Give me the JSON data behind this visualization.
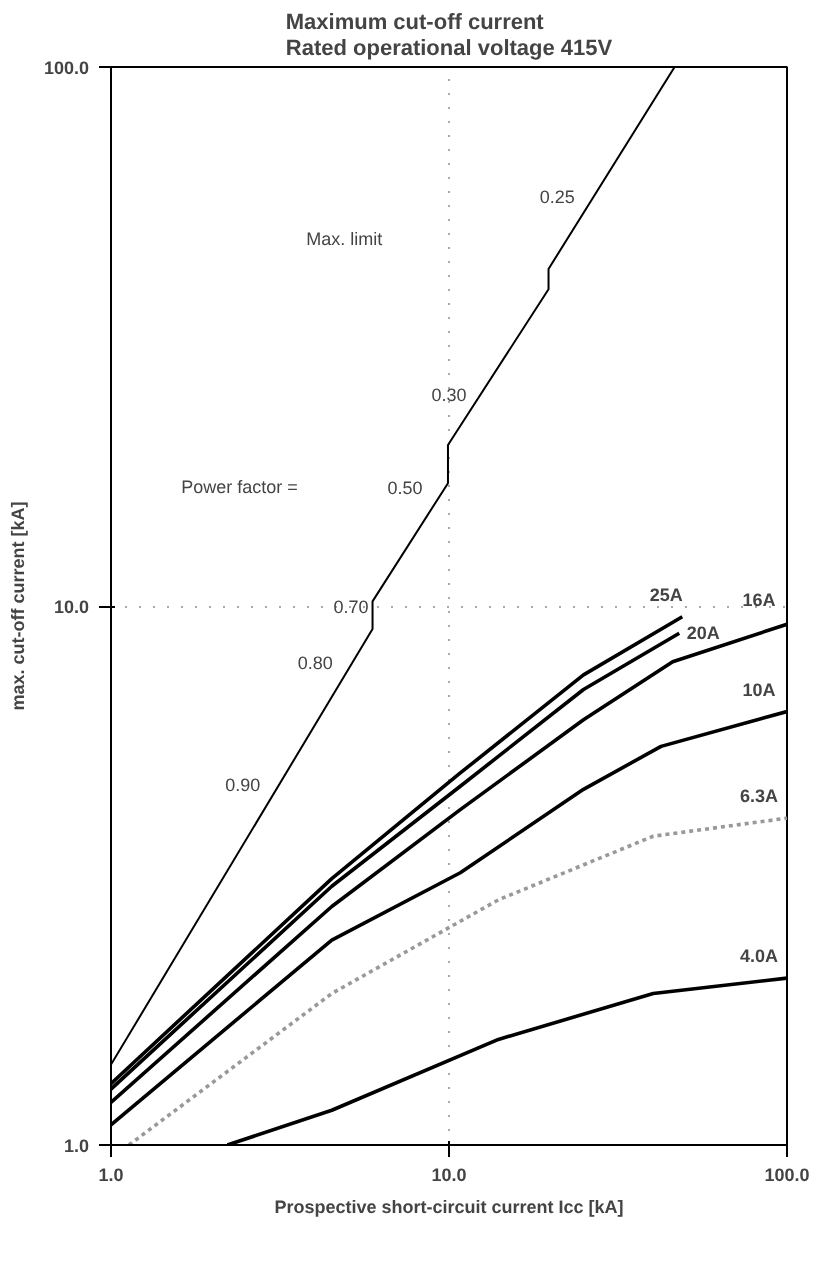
{
  "chart_data": {
    "type": "line",
    "title": "Maximum cut-off current\nRated operational voltage 415V",
    "xlabel": "Prospective short-circuit current Icc [kA]",
    "ylabel": "max. cut-off current [kA]",
    "log": "xy",
    "xlim": [
      1,
      100
    ],
    "ylim": [
      1,
      100
    ],
    "xticks": [
      {
        "value": 1,
        "label": "1.0"
      },
      {
        "value": 10,
        "label": "10.0"
      },
      {
        "value": 100,
        "label": "100.0"
      }
    ],
    "yticks": [
      {
        "value": 1,
        "label": "1.0"
      },
      {
        "value": 10,
        "label": "10.0"
      },
      {
        "value": 100,
        "label": "100.0"
      }
    ],
    "grid": true,
    "line_style": "solid",
    "series": [
      {
        "color": "#000000",
        "x": [
          1,
          5.94,
          5.94,
          9.93,
          9.93,
          19.7,
          19.7,
          46.5
        ],
        "values": [
          1.41,
          9.06,
          10.2,
          16.9,
          19.9,
          38.7,
          42.2,
          100
        ]
      },
      {
        "name": "25A",
        "color": "#000000",
        "x": [
          1,
          4.5,
          10.8,
          25,
          49
        ],
        "values": [
          1.3,
          3.12,
          4.9,
          7.45,
          9.55
        ]
      },
      {
        "name": "20A",
        "color": "#000000",
        "x": [
          1,
          4.5,
          10.8,
          25,
          48
        ],
        "values": [
          1.27,
          3.02,
          4.63,
          7.0,
          8.9
        ]
      },
      {
        "name": "16A",
        "color": "#000000",
        "x": [
          1,
          4.5,
          10.8,
          25,
          45.9,
          100
        ],
        "values": [
          1.2,
          2.77,
          4.19,
          6.15,
          7.88,
          9.25
        ]
      },
      {
        "name": "10A",
        "color": "#000000",
        "x": [
          1,
          4.5,
          10.8,
          25,
          42.4,
          100
        ],
        "values": [
          1.09,
          2.4,
          3.2,
          4.57,
          5.49,
          6.37
        ]
      },
      {
        "name": "6.3A",
        "color": "#999999",
        "line_style": "dotted",
        "x": [
          1.13,
          4.5,
          14,
          40.2,
          100
        ],
        "values": [
          1.0,
          1.91,
          2.85,
          3.74,
          4.04
        ]
      },
      {
        "name": "4.0A",
        "color": "#000000",
        "x": [
          2.21,
          4.5,
          14,
          40.2,
          100
        ],
        "values": [
          1.0,
          1.16,
          1.57,
          1.91,
          2.04
        ]
      }
    ],
    "annotations": [
      "Max. limit",
      "Power factor =",
      "0.25",
      "0.30",
      "0.50",
      "0.70",
      "0.80",
      "0.90"
    ]
  }
}
